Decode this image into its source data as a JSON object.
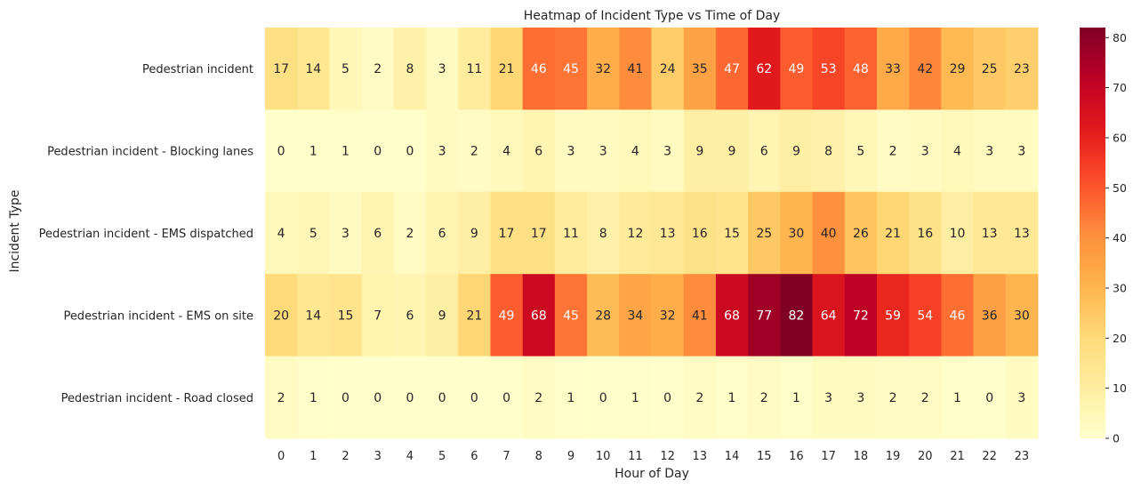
{
  "chart_data": {
    "type": "heatmap",
    "title": "Heatmap of Incident Type vs Time of Day",
    "xlabel": "Hour of Day",
    "ylabel": "Incident Type",
    "x_categories": [
      "0",
      "1",
      "2",
      "3",
      "4",
      "5",
      "6",
      "7",
      "8",
      "9",
      "10",
      "11",
      "12",
      "13",
      "14",
      "15",
      "16",
      "17",
      "18",
      "19",
      "20",
      "21",
      "22",
      "23"
    ],
    "y_categories": [
      "Pedestrian incident",
      "Pedestrian incident - Blocking lanes",
      "Pedestrian incident - EMS dispatched",
      "Pedestrian incident - EMS on site",
      "Pedestrian incident - Road closed"
    ],
    "values": [
      [
        17,
        14,
        5,
        2,
        8,
        3,
        11,
        21,
        46,
        45,
        32,
        41,
        24,
        35,
        47,
        62,
        49,
        53,
        48,
        33,
        42,
        29,
        25,
        23
      ],
      [
        0,
        1,
        1,
        0,
        0,
        3,
        2,
        4,
        6,
        3,
        3,
        4,
        3,
        9,
        9,
        6,
        9,
        8,
        5,
        2,
        3,
        4,
        3,
        3
      ],
      [
        4,
        5,
        3,
        6,
        2,
        6,
        9,
        17,
        17,
        11,
        8,
        12,
        13,
        16,
        15,
        25,
        30,
        40,
        26,
        21,
        16,
        10,
        13,
        13
      ],
      [
        20,
        14,
        15,
        7,
        6,
        9,
        21,
        49,
        68,
        45,
        28,
        34,
        32,
        41,
        68,
        77,
        82,
        64,
        72,
        59,
        54,
        46,
        36,
        30
      ],
      [
        2,
        1,
        0,
        0,
        0,
        0,
        0,
        0,
        2,
        1,
        0,
        1,
        0,
        2,
        1,
        2,
        1,
        3,
        3,
        2,
        2,
        1,
        0,
        3
      ]
    ],
    "colormap": "YlOrRd",
    "colorbar": {
      "min": 0,
      "max": 82,
      "ticks": [
        0,
        10,
        20,
        30,
        40,
        50,
        60,
        70,
        80
      ]
    },
    "annotations": true
  }
}
